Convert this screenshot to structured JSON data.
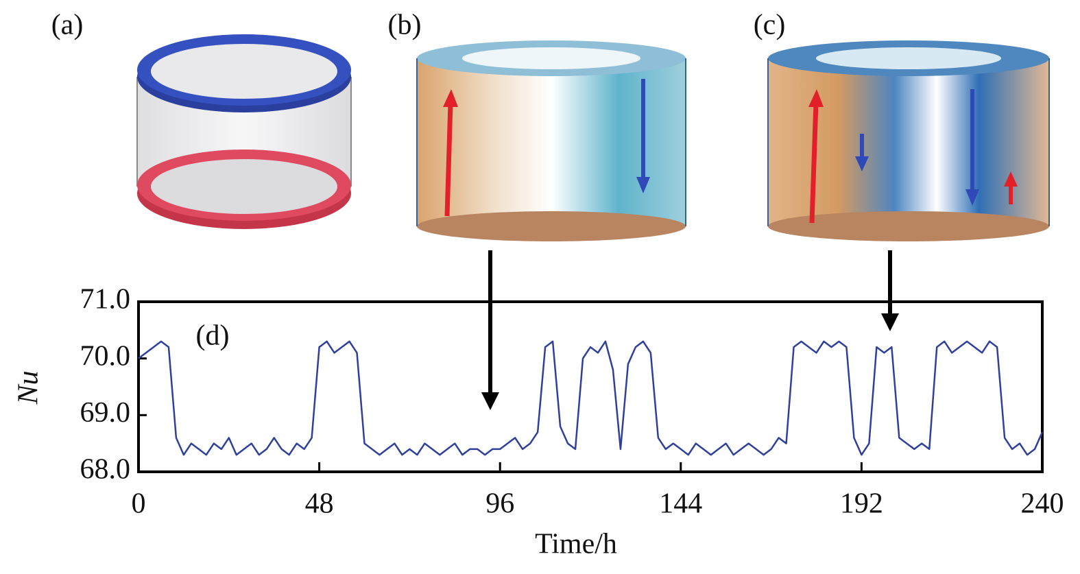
{
  "chart_data": {
    "type": "line",
    "annotations": [
      "(a)",
      "(b)",
      "(c)",
      "(d)"
    ],
    "xlabel": "Time/h",
    "ylabel": "Nu",
    "x": [
      0,
      2,
      4,
      6,
      8,
      10,
      12,
      14,
      16,
      18,
      20,
      22,
      24,
      26,
      28,
      30,
      32,
      34,
      36,
      38,
      40,
      42,
      44,
      46,
      48,
      50,
      52,
      54,
      56,
      58,
      60,
      62,
      64,
      66,
      68,
      70,
      72,
      74,
      76,
      78,
      80,
      82,
      84,
      86,
      88,
      90,
      92,
      94,
      96,
      98,
      100,
      102,
      104,
      106,
      108,
      110,
      112,
      114,
      116,
      118,
      120,
      122,
      124,
      126,
      128,
      130,
      132,
      134,
      136,
      138,
      140,
      142,
      144,
      146,
      148,
      150,
      152,
      154,
      156,
      158,
      160,
      162,
      164,
      166,
      168,
      170,
      172,
      174,
      176,
      178,
      180,
      182,
      184,
      186,
      188,
      190,
      192,
      194,
      196,
      198,
      200,
      202,
      204,
      206,
      208,
      210,
      212,
      214,
      216,
      218,
      220,
      222,
      224,
      226,
      228,
      230,
      232,
      234,
      236,
      238,
      240
    ],
    "series": [
      {
        "name": "Nu",
        "color": "#2e3f9c",
        "values": [
          70.0,
          70.1,
          70.2,
          70.3,
          70.2,
          68.6,
          68.3,
          68.5,
          68.4,
          68.3,
          68.5,
          68.4,
          68.6,
          68.3,
          68.4,
          68.5,
          68.3,
          68.4,
          68.6,
          68.4,
          68.3,
          68.5,
          68.4,
          68.6,
          70.2,
          70.3,
          70.1,
          70.2,
          70.3,
          70.1,
          68.5,
          68.4,
          68.3,
          68.4,
          68.5,
          68.3,
          68.4,
          68.3,
          68.5,
          68.4,
          68.3,
          68.4,
          68.5,
          68.3,
          68.4,
          68.4,
          68.3,
          68.4,
          68.4,
          68.5,
          68.6,
          68.4,
          68.5,
          68.7,
          70.2,
          70.3,
          68.8,
          68.5,
          68.4,
          70.0,
          70.2,
          70.1,
          70.3,
          69.8,
          68.4,
          69.9,
          70.2,
          70.3,
          70.1,
          68.6,
          68.4,
          68.5,
          68.4,
          68.3,
          68.5,
          68.4,
          68.3,
          68.4,
          68.5,
          68.3,
          68.4,
          68.5,
          68.4,
          68.3,
          68.4,
          68.6,
          68.5,
          70.2,
          70.3,
          70.2,
          70.1,
          70.3,
          70.2,
          70.3,
          70.2,
          68.6,
          68.3,
          68.5,
          70.2,
          70.1,
          70.2,
          68.6,
          68.5,
          68.4,
          68.5,
          68.4,
          70.2,
          70.3,
          70.1,
          70.2,
          70.3,
          70.2,
          70.1,
          70.3,
          70.2,
          68.6,
          68.4,
          68.5,
          68.3,
          68.4,
          68.7
        ]
      }
    ],
    "xlim": [
      0,
      240
    ],
    "xticks": [
      0,
      48,
      96,
      144,
      192,
      240
    ],
    "ylim": [
      68.0,
      71.0
    ],
    "yticks": [
      {
        "value": 68.0,
        "label": "68.0"
      },
      {
        "value": 69.0,
        "label": "69.0"
      },
      {
        "value": 70.0,
        "label": "70.0"
      },
      {
        "value": 71.0,
        "label": "71.0"
      }
    ]
  }
}
